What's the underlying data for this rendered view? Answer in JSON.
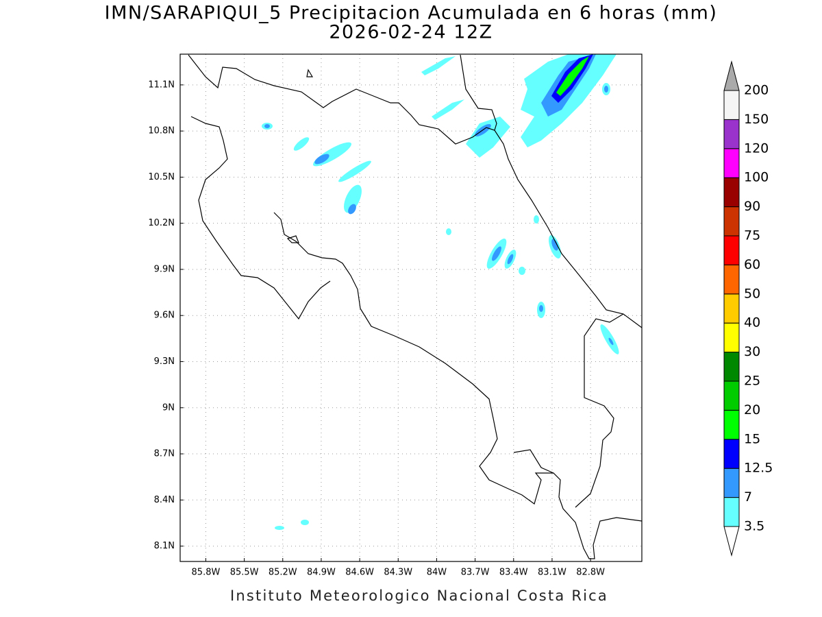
{
  "header": {
    "title": "IMN/SARAPIQUI_5 Precipitacion Acumulada en 6 horas (mm)",
    "subtitle": "2026-02-24 12Z"
  },
  "map": {
    "xlim": [
      -86.0,
      -82.4
    ],
    "ylim": [
      8.0,
      11.3
    ],
    "xticks": [
      {
        "value": -85.8,
        "label": "85.8W"
      },
      {
        "value": -85.5,
        "label": "85.5W"
      },
      {
        "value": -85.2,
        "label": "85.2W"
      },
      {
        "value": -84.9,
        "label": "84.9W"
      },
      {
        "value": -84.6,
        "label": "84.6W"
      },
      {
        "value": -84.3,
        "label": "84.3W"
      },
      {
        "value": -84.0,
        "label": "84W"
      },
      {
        "value": -83.7,
        "label": "83.7W"
      },
      {
        "value": -83.4,
        "label": "83.4W"
      },
      {
        "value": -83.1,
        "label": "83.1W"
      },
      {
        "value": -82.8,
        "label": "82.8W"
      }
    ],
    "yticks": [
      {
        "value": 8.1,
        "label": "8.1N"
      },
      {
        "value": 8.4,
        "label": "8.4N"
      },
      {
        "value": 8.7,
        "label": "8.7N"
      },
      {
        "value": 9.0,
        "label": "9N"
      },
      {
        "value": 9.3,
        "label": "9.3N"
      },
      {
        "value": 9.6,
        "label": "9.6N"
      },
      {
        "value": 9.9,
        "label": "9.9N"
      },
      {
        "value": 10.2,
        "label": "10.2N"
      },
      {
        "value": 10.5,
        "label": "10.5N"
      },
      {
        "value": 10.8,
        "label": "10.8N"
      },
      {
        "value": 11.1,
        "label": "11.1N"
      }
    ],
    "grid": true
  },
  "colorbar": {
    "levels": [
      3.5,
      7,
      12.5,
      15,
      20,
      25,
      30,
      40,
      50,
      60,
      75,
      90,
      100,
      120,
      150,
      200
    ],
    "colors": [
      "#66ffff",
      "#3399ff",
      "#0000ff",
      "#00ff00",
      "#00cc00",
      "#008800",
      "#ffff00",
      "#ffcc00",
      "#ff6600",
      "#ff0000",
      "#cc3300",
      "#990000",
      "#ff00ff",
      "#9933cc",
      "#f5f5f5"
    ],
    "under_color": "#ffffff",
    "over_color": "#aaaaaa"
  },
  "footer": "Instituto Meteorologico Nacional Costa Rica"
}
